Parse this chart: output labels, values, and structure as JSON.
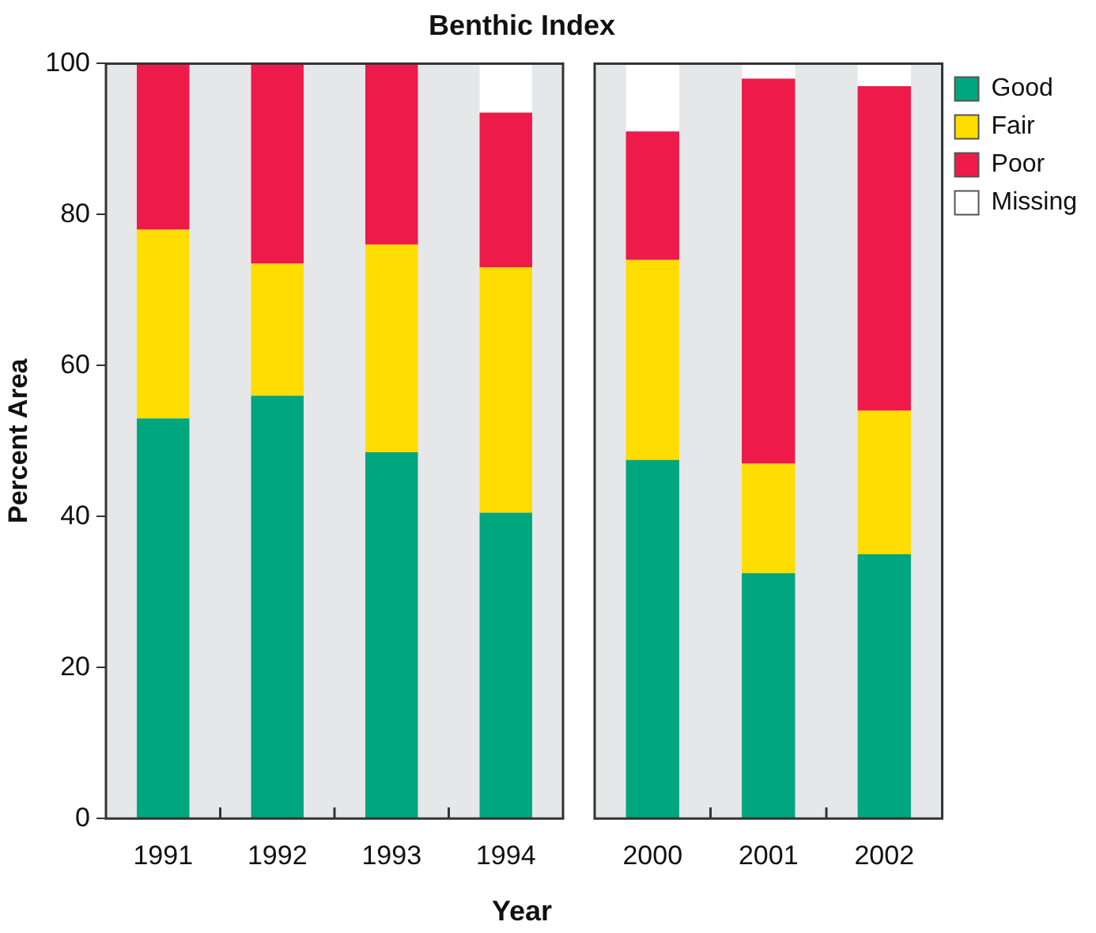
{
  "chart_data": [
    {
      "type": "bar",
      "title": "Benthic Index",
      "xlabel": "Year",
      "ylabel": "Percent Area",
      "stacked": true,
      "legend": false,
      "categories": [
        "1991",
        "1992",
        "1993",
        "1994"
      ],
      "series": [
        {
          "color": "#00a67e",
          "values": [
            53,
            56,
            48.5,
            40.5
          ]
        },
        {
          "color": "#ffdd00",
          "values": [
            25,
            17.5,
            27.5,
            32.5
          ]
        },
        {
          "color": "#ee1a4a",
          "values": [
            22,
            26.5,
            24,
            20.5
          ]
        },
        {
          "color": "#ffffff",
          "values": [
            0,
            0,
            0,
            6.5
          ]
        }
      ],
      "ylim": [
        0,
        100
      ],
      "yticks": [
        0,
        20,
        40,
        60,
        80,
        100
      ]
    },
    {
      "type": "bar",
      "stacked": true,
      "legend": "right",
      "tick_labels": "x",
      "categories": [
        "2000",
        "2001",
        "2002"
      ],
      "series": [
        {
          "name": "Good",
          "color": "#00a67e",
          "values": [
            47.5,
            32.5,
            35
          ]
        },
        {
          "name": "Fair",
          "color": "#ffdd00",
          "values": [
            26.5,
            14.5,
            19
          ]
        },
        {
          "name": "Poor",
          "color": "#ee1a4a",
          "values": [
            17,
            51,
            43
          ]
        },
        {
          "name": "Missing",
          "color": "#ffffff",
          "values": [
            9,
            2,
            3
          ]
        }
      ],
      "ylim": [
        0,
        100
      ],
      "yticks": [
        0,
        20,
        40,
        60,
        80,
        100
      ]
    }
  ]
}
